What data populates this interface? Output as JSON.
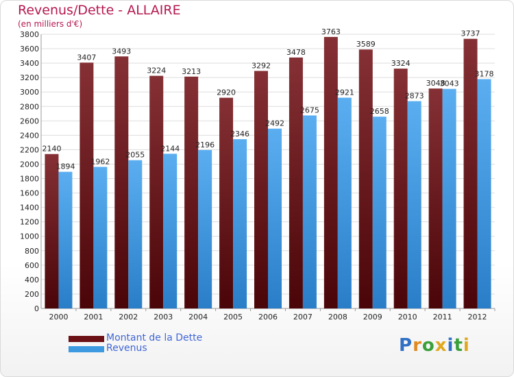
{
  "header": {
    "title": "Revenus/Dette - ALLAIRE",
    "subtitle": "(en milliers d'€)"
  },
  "chart_data": {
    "type": "bar",
    "title": "Revenus/Dette - ALLAIRE",
    "subtitle": "(en milliers d'€)",
    "xlabel": "",
    "ylabel": "",
    "ylim": [
      0,
      3800
    ],
    "ytick_step": 200,
    "grid": true,
    "legend_position": "bottom-left",
    "categories": [
      "2000",
      "2001",
      "2002",
      "2003",
      "2004",
      "2005",
      "2006",
      "2007",
      "2008",
      "2009",
      "2010",
      "2011",
      "2012"
    ],
    "series": [
      {
        "name": "Montant de la Dette",
        "color": "#7a1f22",
        "values": [
          2140,
          3407,
          3493,
          3224,
          3213,
          2920,
          3292,
          3478,
          3763,
          3589,
          3324,
          3048,
          3737
        ]
      },
      {
        "name": "Revenus",
        "color": "#3d9ae0",
        "values": [
          1894,
          1962,
          2055,
          2144,
          2196,
          2346,
          2492,
          2675,
          2921,
          2658,
          2873,
          3043,
          3178
        ]
      }
    ]
  },
  "legend": {
    "items": [
      {
        "label": "Montant de la Dette",
        "color": "#6b1015"
      },
      {
        "label": "Revenus",
        "color": "#3d9ae0"
      }
    ]
  },
  "logo": {
    "letters": [
      "P",
      "r",
      "o",
      "x",
      "i",
      "t",
      "i"
    ],
    "colors": [
      "#2f6fc4",
      "#e08a1f",
      "#3aa03a",
      "#e0a81f",
      "#2f6fc4",
      "#3aa03a",
      "#e0a81f"
    ]
  }
}
